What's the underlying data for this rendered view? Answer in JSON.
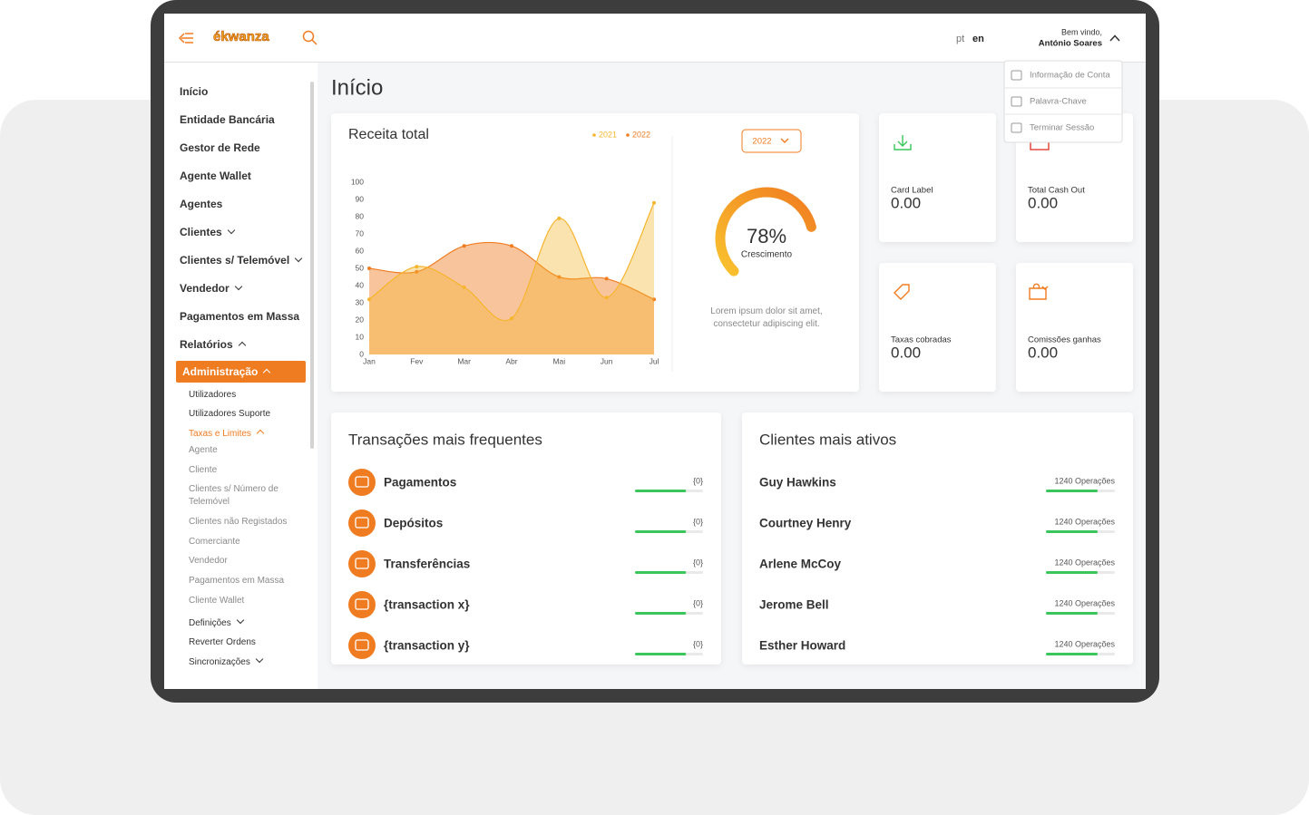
{
  "header": {
    "logo": "ékwanza",
    "languages": [
      "pt",
      "en"
    ],
    "active_language": "en",
    "greeting": "Bem vindo,",
    "user": "António Soares"
  },
  "user_menu": [
    "Informação de Conta",
    "Palavra-Chave",
    "Terminar Sessão"
  ],
  "sidebar": [
    {
      "label": "Início",
      "level": 0
    },
    {
      "label": "Entidade Bancária",
      "level": 0
    },
    {
      "label": "Gestor de Rede",
      "level": 0
    },
    {
      "label": "Agente Wallet",
      "level": 0
    },
    {
      "label": "Agentes",
      "level": 0
    },
    {
      "label": "Clientes",
      "level": 0,
      "chevron": "down"
    },
    {
      "label": "Clientes s/ Telemóvel",
      "level": 0,
      "chevron": "down"
    },
    {
      "label": "Vendedor",
      "level": 0,
      "chevron": "down"
    },
    {
      "label": "Pagamentos em Massa",
      "level": 0
    },
    {
      "label": "Relatórios",
      "level": 0,
      "chevron": "up"
    },
    {
      "label": "Administração",
      "level": 0,
      "chevron": "up",
      "active": true
    },
    {
      "label": "Utilizadores",
      "level": 1
    },
    {
      "label": "Utilizadores Suporte",
      "level": 1
    },
    {
      "label": "Taxas e Limites",
      "level": 1,
      "chevron": "up",
      "active": true
    },
    {
      "label": "Agente",
      "level": 2
    },
    {
      "label": "Cliente",
      "level": 2
    },
    {
      "label": "Clientes s/ Número de Telemóvel",
      "level": 2
    },
    {
      "label": "Clientes não Registados",
      "level": 2
    },
    {
      "label": "Comerciante",
      "level": 2
    },
    {
      "label": "Vendedor",
      "level": 2
    },
    {
      "label": "Pagamentos em Massa",
      "level": 2
    },
    {
      "label": "Cliente Wallet",
      "level": 2
    },
    {
      "label": "Definições",
      "level": 1,
      "chevron": "down"
    },
    {
      "label": "Reverter Ordens",
      "level": 1
    },
    {
      "label": "Sincronizações",
      "level": 1,
      "chevron": "down"
    }
  ],
  "page_title": "Início",
  "chart_data": {
    "type": "area",
    "title": "Receita total",
    "categories": [
      "Jan",
      "Fev",
      "Mar",
      "Abr",
      "Mai",
      "Jun",
      "Jul"
    ],
    "series": [
      {
        "name": "2021",
        "color": "#f5b52e",
        "values": [
          32,
          51,
          39,
          21,
          79,
          33,
          88
        ]
      },
      {
        "name": "2022",
        "color": "#f07c21",
        "values": [
          50,
          48,
          63,
          63,
          45,
          44,
          32
        ]
      }
    ],
    "ylim": [
      0,
      100
    ],
    "yticks": [
      0,
      10,
      20,
      30,
      40,
      50,
      60,
      70,
      80,
      90,
      100
    ]
  },
  "revenue_panel": {
    "year": "2022",
    "growth": {
      "value": 78,
      "value_label": "78%",
      "label": "Crescimento"
    },
    "description": "Lorem ipsum dolor sit amet, consectetur adipiscing elit."
  },
  "stat_cards": [
    {
      "label": "Card Label",
      "value": "0.00"
    },
    {
      "label": "Total Cash Out",
      "value": "0.00"
    },
    {
      "label": "Taxas cobradas",
      "value": "0.00"
    },
    {
      "label": "Comissões ganhas",
      "value": "0.00"
    }
  ],
  "transactions": {
    "title": "Transações mais frequentes",
    "rows": [
      {
        "name": "Pagamentos",
        "value": "{0}",
        "progress": 75
      },
      {
        "name": "Depósitos",
        "value": "{0}",
        "progress": 75
      },
      {
        "name": "Transferências",
        "value": "{0}",
        "progress": 75
      },
      {
        "name": "{transaction x}",
        "value": "{0}",
        "progress": 75
      },
      {
        "name": "{transaction y}",
        "value": "{0}",
        "progress": 75
      }
    ]
  },
  "clients": {
    "title": "Clientes mais ativos",
    "rows": [
      {
        "name": "Guy Hawkins",
        "operations": "1240 Operações",
        "progress": 75
      },
      {
        "name": "Courtney Henry",
        "operations": "1240 Operações",
        "progress": 75
      },
      {
        "name": "Arlene McCoy",
        "operations": "1240 Operações",
        "progress": 75
      },
      {
        "name": "Jerome Bell",
        "operations": "1240 Operações",
        "progress": 75
      },
      {
        "name": "Esther Howard",
        "operations": "1240 Operações",
        "progress": 75
      }
    ]
  }
}
